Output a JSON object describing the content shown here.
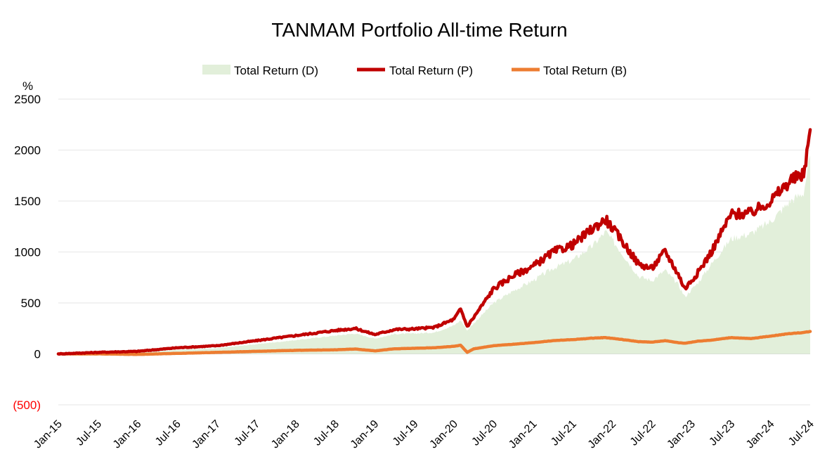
{
  "chart_data": {
    "type": "line",
    "title": "TANMAM Portfolio All-time Return",
    "ylabel": "%",
    "ylim": [
      -500,
      2500
    ],
    "y_ticks": [
      2500,
      2000,
      1500,
      1000,
      500,
      0,
      -500
    ],
    "y_tick_labels": [
      "2500",
      "2000",
      "1500",
      "1000",
      "500",
      "0",
      "(500)"
    ],
    "x_tick_labels": [
      "Jan-15",
      "Jul-15",
      "Jan-16",
      "Jul-16",
      "Jan-17",
      "Jul-17",
      "Jan-18",
      "Jul-18",
      "Jan-19",
      "Jul-19",
      "Jan-20",
      "Jul-20",
      "Jan-21",
      "Jul-21",
      "Jan-22",
      "Jul-22",
      "Jan-23",
      "Jul-23",
      "Jan-24",
      "Jul-24"
    ],
    "grid": true,
    "legend_position": "top",
    "series": [
      {
        "name": "Total Return (D)",
        "style": "area",
        "color": "#e2efda",
        "x": [
          "Jan-15",
          "Jul-15",
          "Jan-16",
          "Jul-16",
          "Jan-17",
          "Jul-17",
          "Jan-18",
          "Jul-18",
          "Oct-18",
          "Jan-19",
          "Apr-19",
          "Jul-19",
          "Oct-19",
          "Jan-20",
          "Feb-20",
          "Mar-20",
          "Apr-20",
          "Jul-20",
          "Oct-20",
          "Jan-21",
          "Apr-21",
          "Jul-21",
          "Oct-21",
          "Dec-21",
          "Feb-22",
          "May-22",
          "Jul-22",
          "Sep-22",
          "Nov-22",
          "Dec-22",
          "Feb-23",
          "Apr-23",
          "Jul-23",
          "Oct-23",
          "Jan-24",
          "Apr-24",
          "Jun-24",
          "Jul-24"
        ],
        "values": [
          0,
          10,
          15,
          40,
          55,
          95,
          135,
          180,
          200,
          150,
          195,
          200,
          210,
          280,
          330,
          230,
          300,
          500,
          620,
          720,
          840,
          920,
          1060,
          1200,
          1030,
          760,
          720,
          820,
          680,
          560,
          700,
          880,
          1130,
          1180,
          1300,
          1500,
          1580,
          1950
        ]
      },
      {
        "name": "Total Return (P)",
        "style": "line",
        "color": "#c00000",
        "x": [
          "Jan-15",
          "Jul-15",
          "Jan-16",
          "Jul-16",
          "Jan-17",
          "Jul-17",
          "Jan-18",
          "Jul-18",
          "Oct-18",
          "Jan-19",
          "Apr-19",
          "Jul-19",
          "Oct-19",
          "Jan-20",
          "Feb-20",
          "Mar-20",
          "Apr-20",
          "Jul-20",
          "Oct-20",
          "Jan-21",
          "Apr-21",
          "Jul-21",
          "Oct-21",
          "Dec-21",
          "Feb-22",
          "May-22",
          "Jul-22",
          "Sep-22",
          "Nov-22",
          "Dec-22",
          "Feb-23",
          "Apr-23",
          "Jul-23",
          "Oct-23",
          "Jan-24",
          "Apr-24",
          "Jun-24",
          "Jul-24"
        ],
        "values": [
          0,
          15,
          25,
          60,
          80,
          130,
          180,
          230,
          250,
          190,
          240,
          245,
          260,
          340,
          440,
          270,
          360,
          640,
          770,
          860,
          1000,
          1070,
          1230,
          1320,
          1150,
          880,
          840,
          1010,
          780,
          640,
          800,
          1000,
          1370,
          1380,
          1500,
          1700,
          1760,
          2200
        ]
      },
      {
        "name": "Total Return (B)",
        "style": "line",
        "color": "#ed7d31",
        "x": [
          "Jan-15",
          "Jul-15",
          "Jan-16",
          "Jul-16",
          "Jan-17",
          "Jul-17",
          "Jan-18",
          "Jul-18",
          "Oct-18",
          "Jan-19",
          "Apr-19",
          "Jul-19",
          "Oct-19",
          "Jan-20",
          "Feb-20",
          "Mar-20",
          "Apr-20",
          "Jul-20",
          "Oct-20",
          "Jan-21",
          "Apr-21",
          "Jul-21",
          "Oct-21",
          "Dec-21",
          "Feb-22",
          "May-22",
          "Jul-22",
          "Sep-22",
          "Nov-22",
          "Dec-22",
          "Feb-23",
          "Apr-23",
          "Jul-23",
          "Oct-23",
          "Jan-24",
          "Apr-24",
          "Jun-24",
          "Jul-24"
        ],
        "values": [
          0,
          0,
          -5,
          5,
          15,
          25,
          35,
          40,
          48,
          30,
          50,
          55,
          60,
          75,
          85,
          15,
          50,
          80,
          95,
          110,
          130,
          140,
          155,
          160,
          145,
          120,
          115,
          130,
          110,
          105,
          125,
          135,
          160,
          150,
          175,
          200,
          210,
          220
        ]
      }
    ]
  }
}
